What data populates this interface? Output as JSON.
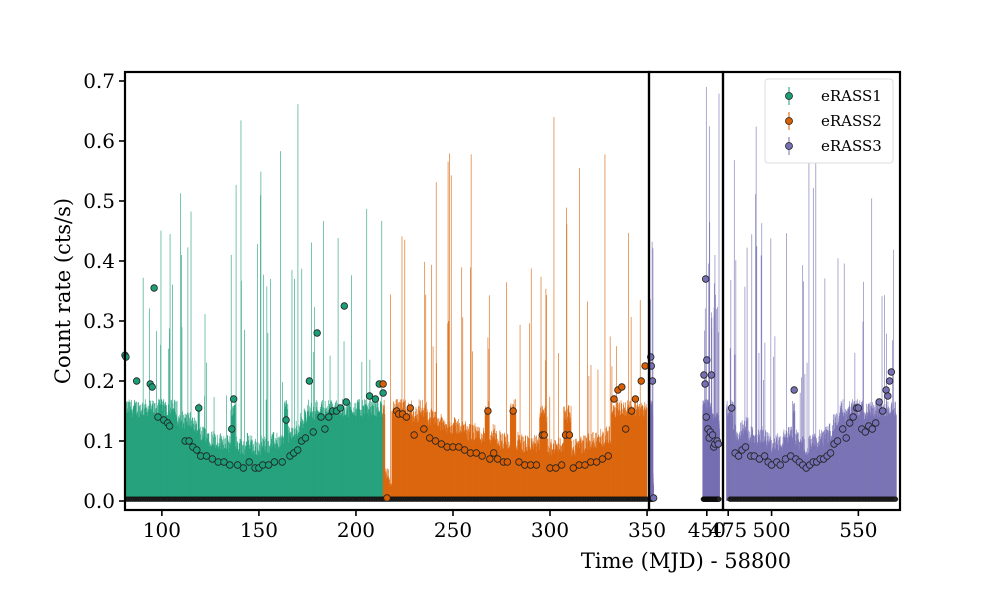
{
  "chart_data": {
    "type": "scatter",
    "xlabel": "Time (MJD) - 58800",
    "ylabel": "Count rate (cts/s)",
    "ylim": [
      -0.015,
      0.715
    ],
    "y_ticks": [
      0.0,
      0.1,
      0.2,
      0.3,
      0.4,
      0.5,
      0.6,
      0.7
    ],
    "grid": false,
    "legend_position": "top-right",
    "panels": [
      {
        "xlim": [
          81,
          351
        ],
        "x_ticks": [
          100,
          150,
          200,
          250,
          300,
          350
        ]
      },
      {
        "xlim": [
          350,
          478
        ],
        "x_ticks": [
          450
        ]
      },
      {
        "xlim": [
          472,
          574
        ],
        "x_ticks": [
          475,
          500,
          550
        ]
      }
    ],
    "series": [
      {
        "name": "eRASS1",
        "color": "#1b9e77",
        "points": [
          [
            81,
            0.243
          ],
          [
            81.5,
            0.24
          ],
          [
            87,
            0.2
          ],
          [
            94,
            0.195
          ],
          [
            95,
            0.19
          ],
          [
            96,
            0.355
          ],
          [
            98,
            0.14
          ],
          [
            101,
            0.135
          ],
          [
            103,
            0.13
          ],
          [
            104,
            0.125
          ],
          [
            112,
            0.1
          ],
          [
            114,
            0.1
          ],
          [
            116,
            0.09
          ],
          [
            118,
            0.085
          ],
          [
            119,
            0.155
          ],
          [
            120,
            0.075
          ],
          [
            123,
            0.075
          ],
          [
            126,
            0.07
          ],
          [
            129,
            0.065
          ],
          [
            132,
            0.065
          ],
          [
            135,
            0.06
          ],
          [
            136,
            0.12
          ],
          [
            137,
            0.17
          ],
          [
            139,
            0.06
          ],
          [
            142,
            0.055
          ],
          [
            145,
            0.065
          ],
          [
            148,
            0.055
          ],
          [
            150,
            0.055
          ],
          [
            152,
            0.06
          ],
          [
            155,
            0.06
          ],
          [
            158,
            0.065
          ],
          [
            162,
            0.065
          ],
          [
            164,
            0.135
          ],
          [
            166,
            0.075
          ],
          [
            168,
            0.08
          ],
          [
            170,
            0.085
          ],
          [
            172,
            0.1
          ],
          [
            174,
            0.105
          ],
          [
            176,
            0.2
          ],
          [
            178,
            0.115
          ],
          [
            180,
            0.28
          ],
          [
            182,
            0.14
          ],
          [
            184,
            0.12
          ],
          [
            186,
            0.14
          ],
          [
            188,
            0.15
          ],
          [
            190,
            0.15
          ],
          [
            192,
            0.155
          ],
          [
            194,
            0.325
          ],
          [
            195,
            0.165
          ],
          [
            207,
            0.175
          ],
          [
            210,
            0.17
          ],
          [
            212,
            0.195
          ],
          [
            214,
            0.18
          ]
        ]
      },
      {
        "name": "eRASS2",
        "color": "#d95f02",
        "points": [
          [
            214,
            0.195
          ],
          [
            216,
            0.005
          ],
          [
            221,
            0.15
          ],
          [
            222,
            0.145
          ],
          [
            224,
            0.145
          ],
          [
            226,
            0.14
          ],
          [
            228,
            0.155
          ],
          [
            230,
            0.11
          ],
          [
            235,
            0.12
          ],
          [
            238,
            0.105
          ],
          [
            241,
            0.1
          ],
          [
            244,
            0.095
          ],
          [
            247,
            0.09
          ],
          [
            250,
            0.09
          ],
          [
            253,
            0.09
          ],
          [
            256,
            0.085
          ],
          [
            259,
            0.08
          ],
          [
            262,
            0.08
          ],
          [
            265,
            0.075
          ],
          [
            268,
            0.15
          ],
          [
            269,
            0.07
          ],
          [
            271,
            0.08
          ],
          [
            273,
            0.07
          ],
          [
            276,
            0.065
          ],
          [
            278,
            0.065
          ],
          [
            281,
            0.15
          ],
          [
            284,
            0.065
          ],
          [
            287,
            0.06
          ],
          [
            290,
            0.06
          ],
          [
            293,
            0.06
          ],
          [
            296,
            0.11
          ],
          [
            297,
            0.11
          ],
          [
            300,
            0.055
          ],
          [
            303,
            0.055
          ],
          [
            306,
            0.06
          ],
          [
            308,
            0.11
          ],
          [
            310,
            0.11
          ],
          [
            312,
            0.055
          ],
          [
            315,
            0.06
          ],
          [
            318,
            0.06
          ],
          [
            321,
            0.065
          ],
          [
            324,
            0.065
          ],
          [
            327,
            0.07
          ],
          [
            330,
            0.075
          ],
          [
            333,
            0.17
          ],
          [
            335,
            0.185
          ],
          [
            337,
            0.19
          ],
          [
            339,
            0.12
          ],
          [
            342,
            0.15
          ],
          [
            344,
            0.17
          ],
          [
            347,
            0.2
          ],
          [
            349,
            0.225
          ]
        ]
      },
      {
        "name": "eRASS3",
        "color": "#7570b3",
        "points": [
          [
            353,
            0.24
          ],
          [
            354,
            0.225
          ],
          [
            356,
            0.2
          ],
          [
            358,
            0.005
          ],
          [
            445,
            0.21
          ],
          [
            447,
            0.195
          ],
          [
            448,
            0.37
          ],
          [
            449,
            0.14
          ],
          [
            450,
            0.235
          ],
          [
            452,
            0.12
          ],
          [
            454,
            0.105
          ],
          [
            456,
            0.115
          ],
          [
            458,
            0.21
          ],
          [
            460,
            0.11
          ],
          [
            462,
            0.09
          ],
          [
            464,
            0.095
          ],
          [
            468,
            0.1
          ],
          [
            470,
            0.095
          ],
          [
            477,
            0.155
          ],
          [
            479,
            0.08
          ],
          [
            481,
            0.075
          ],
          [
            483,
            0.085
          ],
          [
            485,
            0.09
          ],
          [
            488,
            0.075
          ],
          [
            490,
            0.075
          ],
          [
            493,
            0.07
          ],
          [
            496,
            0.075
          ],
          [
            498,
            0.065
          ],
          [
            500,
            0.06
          ],
          [
            503,
            0.065
          ],
          [
            505,
            0.06
          ],
          [
            508,
            0.07
          ],
          [
            511,
            0.075
          ],
          [
            513,
            0.185
          ],
          [
            514,
            0.07
          ],
          [
            516,
            0.065
          ],
          [
            518,
            0.06
          ],
          [
            520,
            0.055
          ],
          [
            522,
            0.06
          ],
          [
            524,
            0.065
          ],
          [
            526,
            0.065
          ],
          [
            528,
            0.07
          ],
          [
            530,
            0.07
          ],
          [
            532,
            0.075
          ],
          [
            534,
            0.08
          ],
          [
            536,
            0.095
          ],
          [
            538,
            0.1
          ],
          [
            541,
            0.12
          ],
          [
            543,
            0.105
          ],
          [
            545,
            0.13
          ],
          [
            547,
            0.14
          ],
          [
            549,
            0.155
          ],
          [
            550,
            0.155
          ],
          [
            552,
            0.12
          ],
          [
            554,
            0.115
          ],
          [
            556,
            0.125
          ],
          [
            558,
            0.12
          ],
          [
            560,
            0.13
          ],
          [
            562,
            0.165
          ],
          [
            564,
            0.15
          ],
          [
            566,
            0.185
          ],
          [
            567,
            0.175
          ],
          [
            568,
            0.2
          ],
          [
            569,
            0.215
          ]
        ]
      }
    ]
  }
}
